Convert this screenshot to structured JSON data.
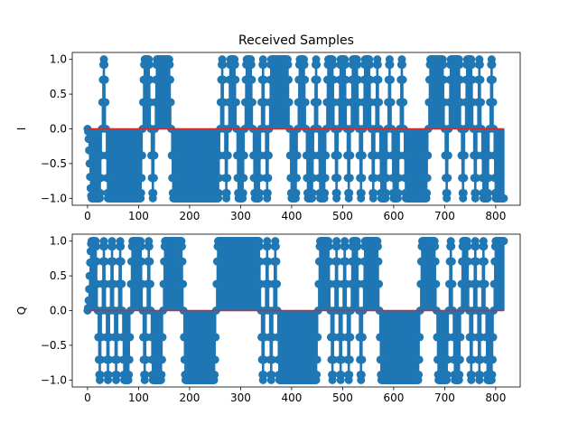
{
  "title": "Received Samples",
  "colors": {
    "marker": "#1f77b4",
    "baseline": "#d62728"
  },
  "chart_data": [
    {
      "type": "stem",
      "title": "Received Samples",
      "ylabel": "I",
      "xlim": [
        -30,
        848
      ],
      "ylim": [
        -1.1,
        1.1
      ],
      "xticks": [
        0,
        100,
        200,
        300,
        400,
        500,
        600,
        700,
        800
      ],
      "yticks": [
        -1.0,
        -0.5,
        0.0,
        0.5,
        1.0
      ],
      "ytick_labels": [
        "−1.0",
        "−0.5",
        "0.0",
        "0.5",
        "1.0"
      ],
      "baseline": 0,
      "n_samples": 817,
      "sample_period": 8,
      "symbols": [
        -1,
        -1,
        -1,
        1,
        -1,
        -1,
        -1,
        -1,
        -1,
        -1,
        -1,
        -1,
        -1,
        1,
        1,
        -1,
        1,
        1,
        1,
        1,
        -1,
        -1,
        -1,
        -1,
        -1,
        -1,
        -1,
        -1,
        -1,
        -1,
        -1,
        -1,
        1,
        -1,
        1,
        1,
        -1,
        -1,
        1,
        1,
        -1,
        -1,
        1,
        -1,
        1,
        1,
        1,
        1,
        1,
        -1,
        -1,
        1,
        1,
        -1,
        -1,
        1,
        -1,
        -1,
        1,
        1,
        -1,
        1,
        1,
        -1,
        1,
        1,
        -1,
        1,
        1,
        -1,
        1,
        -1,
        -1,
        1,
        -1,
        -1,
        1,
        -1,
        -1,
        -1,
        -1,
        -1,
        -1,
        1,
        1,
        1,
        1,
        -1,
        1,
        1,
        1,
        -1,
        1,
        1,
        -1,
        1,
        -1,
        -1,
        1,
        -1,
        -1,
        -1,
        -1
      ]
    },
    {
      "type": "stem",
      "ylabel": "Q",
      "xlim": [
        -30,
        848
      ],
      "ylim": [
        -1.1,
        1.1
      ],
      "xticks": [
        0,
        100,
        200,
        300,
        400,
        500,
        600,
        700,
        800
      ],
      "yticks": [
        -1.0,
        -0.5,
        0.0,
        0.5,
        1.0
      ],
      "ytick_labels": [
        "−1.0",
        "−0.5",
        "0.0",
        "0.5",
        "1.0"
      ],
      "baseline": 0,
      "n_samples": 817,
      "sample_period": 8,
      "symbols": [
        1,
        1,
        -1,
        1,
        -1,
        1,
        -1,
        1,
        -1,
        -1,
        1,
        1,
        1,
        -1,
        1,
        -1,
        -1,
        -1,
        1,
        1,
        1,
        1,
        1,
        -1,
        -1,
        -1,
        -1,
        -1,
        -1,
        -1,
        -1,
        1,
        1,
        1,
        1,
        1,
        1,
        1,
        1,
        1,
        1,
        1,
        -1,
        1,
        -1,
        1,
        -1,
        -1,
        -1,
        -1,
        -1,
        -1,
        -1,
        -1,
        -1,
        -1,
        1,
        1,
        1,
        -1,
        1,
        -1,
        1,
        -1,
        1,
        1,
        -1,
        1,
        1,
        1,
        1,
        -1,
        -1,
        -1,
        -1,
        -1,
        -1,
        -1,
        -1,
        -1,
        -1,
        1,
        1,
        1,
        1,
        -1,
        -1,
        -1,
        1,
        -1,
        -1,
        1,
        1,
        -1,
        1,
        -1,
        1,
        -1,
        -1,
        1,
        1,
        1
      ]
    }
  ]
}
